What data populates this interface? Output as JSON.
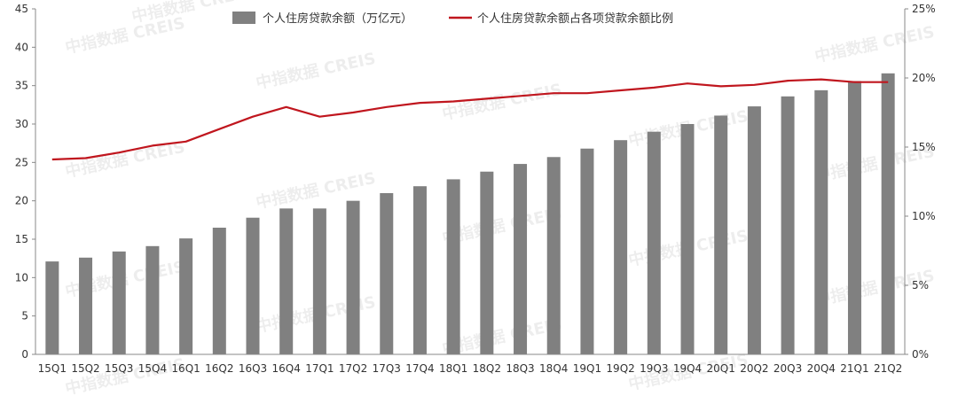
{
  "chart_data": {
    "type": "bar+line",
    "categories": [
      "15Q1",
      "15Q2",
      "15Q3",
      "15Q4",
      "16Q1",
      "16Q2",
      "16Q3",
      "16Q4",
      "17Q1",
      "17Q2",
      "17Q3",
      "17Q4",
      "18Q1",
      "18Q2",
      "18Q3",
      "18Q4",
      "19Q1",
      "19Q2",
      "19Q3",
      "19Q4",
      "20Q1",
      "20Q2",
      "20Q3",
      "20Q4",
      "21Q1",
      "21Q2"
    ],
    "series": [
      {
        "name": "个人住房贷款余额（万亿元）",
        "type": "bar",
        "axis": "left",
        "color": "#808080",
        "values": [
          12.1,
          12.6,
          13.4,
          14.1,
          15.1,
          16.5,
          17.8,
          19.0,
          19.0,
          20.0,
          21.0,
          21.9,
          22.8,
          23.8,
          24.8,
          25.7,
          26.8,
          27.9,
          29.0,
          30.0,
          31.1,
          32.3,
          33.6,
          34.4,
          35.6,
          36.6
        ]
      },
      {
        "name": "个人住房贷款余额占各项贷款余额比例",
        "type": "line",
        "axis": "right",
        "color": "#c0161e",
        "values": [
          14.1,
          14.2,
          14.6,
          15.1,
          15.4,
          16.3,
          17.2,
          17.9,
          17.2,
          17.5,
          17.9,
          18.2,
          18.3,
          18.5,
          18.7,
          18.9,
          18.9,
          19.1,
          19.3,
          19.6,
          19.4,
          19.5,
          19.8,
          19.9,
          19.7,
          19.7
        ]
      }
    ],
    "y_left": {
      "min": 0,
      "max": 45,
      "ticks": [
        "0",
        "5",
        "10",
        "15",
        "20",
        "25",
        "30",
        "35",
        "40",
        "45"
      ]
    },
    "y_right": {
      "min": 0,
      "max": 25,
      "ticks": [
        "0%",
        "5%",
        "10%",
        "15%",
        "20%",
        "25%"
      ]
    },
    "legend_position": "top-center",
    "grid": false
  },
  "watermark": "中指数据 CREIS"
}
